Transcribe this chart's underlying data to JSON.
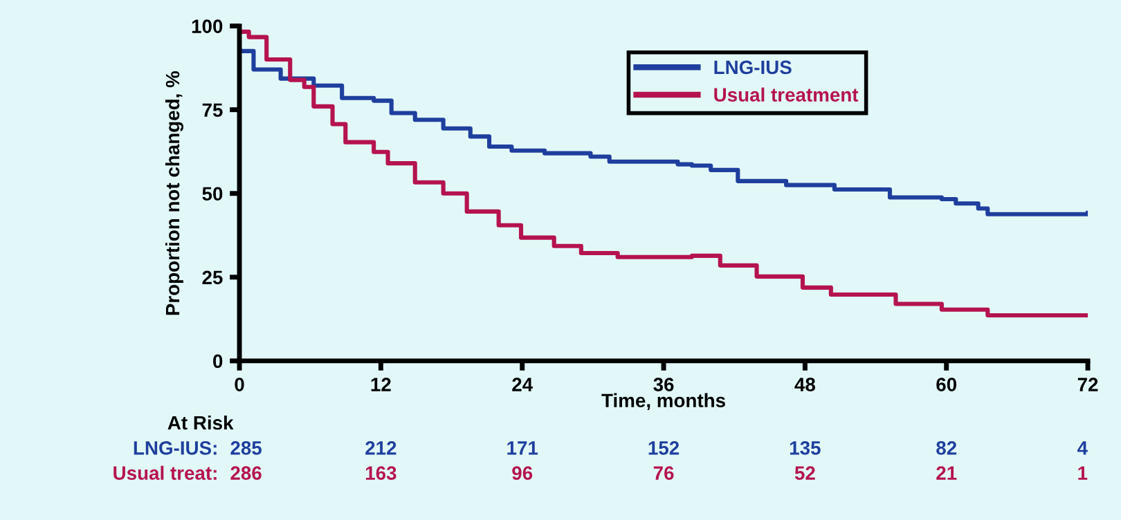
{
  "chart_data": {
    "type": "step",
    "xlabel": "Time, months",
    "ylabel": "Proportion not changed, %",
    "xlim": [
      0,
      72
    ],
    "xticks": [
      0,
      12,
      24,
      36,
      48,
      60,
      72
    ],
    "ylim": [
      0,
      100
    ],
    "yticks": [
      0,
      25,
      50,
      75,
      100
    ],
    "grid": false,
    "legend": "top right",
    "series": [
      {
        "name": "LNG-IUS",
        "color": "#1f3f9e",
        "x": [
          0,
          1.2,
          3.5,
          6.3,
          8.7,
          11.4,
          12.9,
          14.9,
          17.3,
          19.6,
          21.2,
          23.1,
          25.9,
          29.8,
          31.4,
          37.2,
          38.4,
          40,
          42.3,
          45.8,
          46.4,
          50.5,
          55.2,
          59.6,
          60.8,
          62.7,
          63.5,
          72
        ],
        "values": [
          92.5,
          87,
          84.3,
          82.2,
          78.5,
          77.7,
          74,
          72,
          69.4,
          67,
          64,
          62.8,
          62,
          61,
          59.5,
          58.7,
          58.3,
          57,
          53.7,
          53.7,
          52.5,
          51.2,
          48.8,
          48.3,
          47,
          45.5,
          43.8,
          44.2
        ]
      },
      {
        "name": "Usual treatment",
        "color": "#b5134f",
        "x": [
          0,
          0.8,
          2.3,
          4.3,
          5.5,
          6.3,
          7.9,
          9,
          11.4,
          12.6,
          14.9,
          17.3,
          19.3,
          22,
          23.9,
          26.7,
          29,
          32.1,
          38.4,
          40.8,
          43.9,
          47.8,
          50.2,
          55.7,
          59.6,
          63.1,
          63.5,
          72
        ],
        "values": [
          98.3,
          96.7,
          90,
          83.9,
          81.8,
          76,
          70.7,
          65.3,
          62.4,
          59,
          53.3,
          50,
          44.6,
          40.5,
          36.8,
          34.3,
          32.2,
          31,
          31.4,
          28.5,
          25.2,
          21.9,
          19.8,
          17,
          15.3,
          15.3,
          13.6,
          13.6
        ]
      }
    ],
    "annotations": [
      "At Risk",
      "LNG-IUS:",
      "285",
      "212",
      "171",
      "152",
      "135",
      "82",
      "4",
      "Usual treat:",
      "286",
      "163",
      "96",
      "76",
      "52",
      "21",
      "1"
    ]
  }
}
